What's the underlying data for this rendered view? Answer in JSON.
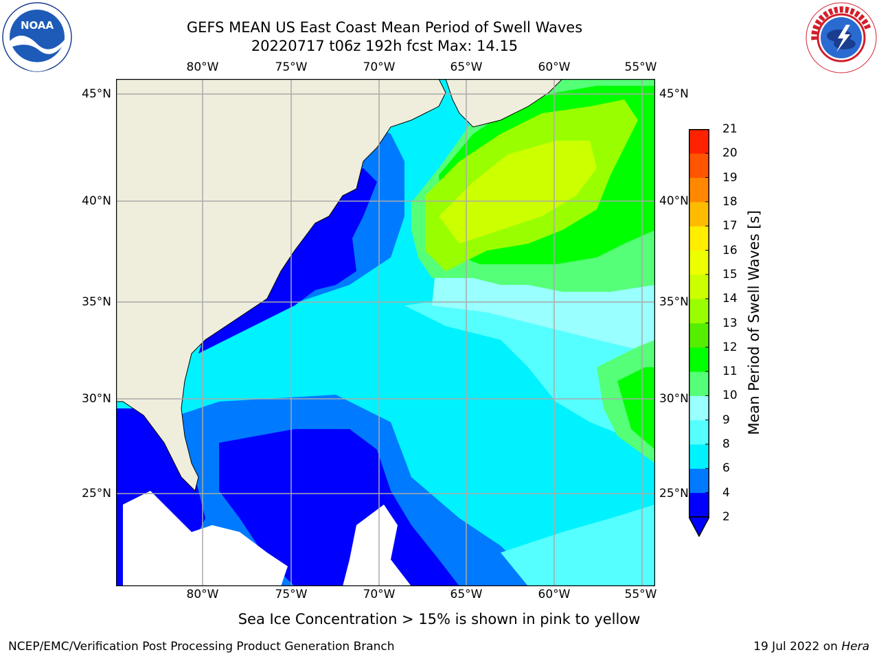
{
  "header": {
    "title_line1": "GEFS MEAN US East Coast Mean Period of Swell Waves",
    "title_line2": "20220717 t06z 192h fcst   Max: 14.15"
  },
  "logos": {
    "left": {
      "text": "NOAA",
      "ring_text": "NATIONAL OCEANIC AND ATMOSPHERIC ADMINISTRATION · U.S. DEPARTMENT OF COMMERCE"
    },
    "right": {
      "ring_text": "NATIONAL WEATHER SERVICE"
    }
  },
  "map": {
    "lon_labels": [
      "80°W",
      "75°W",
      "70°W",
      "65°W",
      "60°W",
      "55°W"
    ],
    "lat_labels": [
      "45°N",
      "40°N",
      "35°N",
      "30°N",
      "25°N"
    ],
    "land_color": "#efeddc",
    "missing_color": "#ffffff",
    "grid_color": "#aaaaaa"
  },
  "colorbar": {
    "title": "Mean Period of Swell Waves [s]",
    "labels": [
      "2",
      "4",
      "6",
      "8",
      "9",
      "10",
      "11",
      "12",
      "13",
      "14",
      "15",
      "16",
      "17",
      "18",
      "19",
      "20",
      "21"
    ],
    "colors": [
      "#0000ff",
      "#007bff",
      "#00f2ff",
      "#55ffff",
      "#99ffff",
      "#55ff77",
      "#00ff00",
      "#55ee00",
      "#99ff00",
      "#ccff00",
      "#eeff00",
      "#ffee00",
      "#ffbb00",
      "#ff8800",
      "#ff5500",
      "#ff2200"
    ],
    "under_color": "#0000ff"
  },
  "annotation": "Sea Ice Concentration > 15% is shown in pink to yellow",
  "footer": {
    "left": "NCEP/EMC/Verification Post Processing Product Generation Branch",
    "date": "19 Jul 2022 on ",
    "machine": "Hera"
  }
}
